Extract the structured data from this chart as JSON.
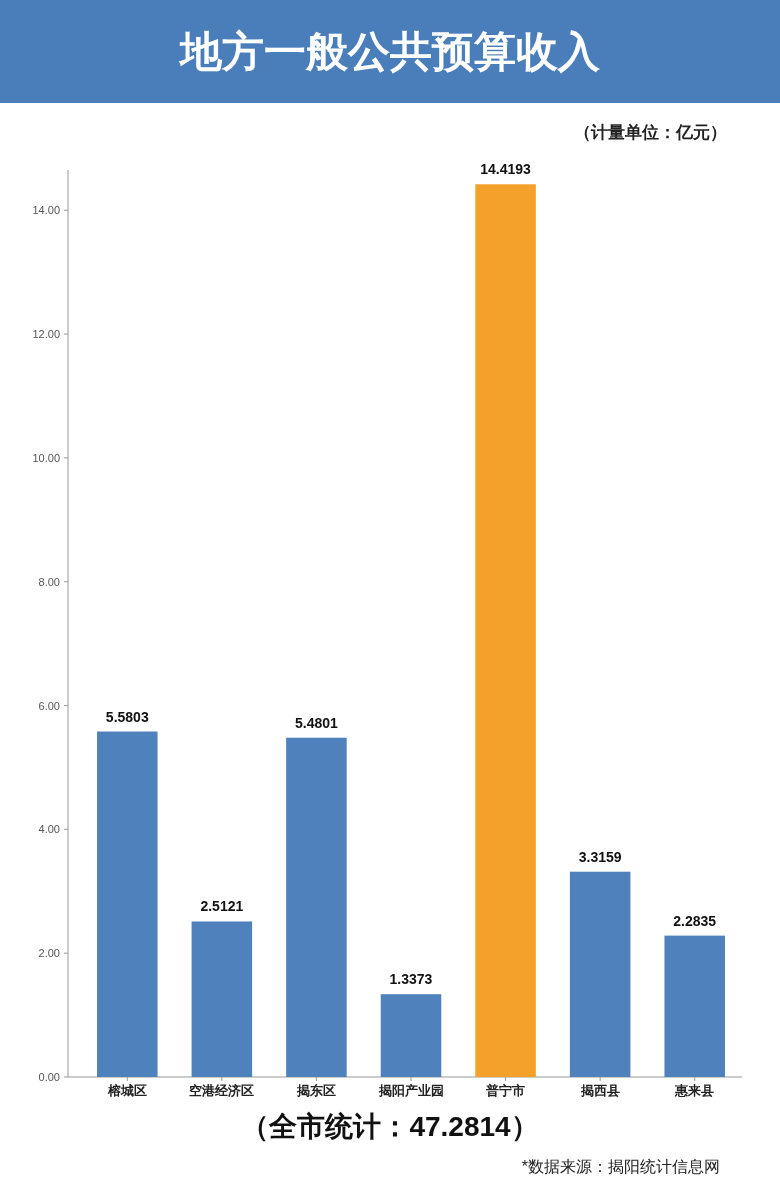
{
  "chart_data": {
    "type": "bar",
    "title": "地方一般公共预算收入",
    "subtitle": "（计量单位：亿元）",
    "categories": [
      "榕城区",
      "空港经济区",
      "揭东区",
      "揭阳产业园",
      "普宁市",
      "揭西县",
      "惠来县"
    ],
    "values": [
      5.5803,
      2.5121,
      5.4801,
      1.3373,
      14.4193,
      3.3159,
      2.2835
    ],
    "colors": [
      "#4f81bd",
      "#4f81bd",
      "#4f81bd",
      "#4f81bd",
      "#f4a12c",
      "#4f81bd",
      "#4f81bd"
    ],
    "ylim": [
      0,
      14.65
    ],
    "yticks": [
      {
        "value": 0,
        "label": "0.00"
      },
      {
        "value": 2,
        "label": "2.00"
      },
      {
        "value": 4,
        "label": "4.00"
      },
      {
        "value": 6,
        "label": "6.00"
      },
      {
        "value": 8,
        "label": "8.00"
      },
      {
        "value": 10,
        "label": "10.00"
      },
      {
        "value": 12,
        "label": "12.00"
      },
      {
        "value": 14,
        "label": "14.00"
      }
    ],
    "grid": false,
    "data_labels": true,
    "annotations": [
      "（全市统计：47.2814）",
      "*数据来源：揭阳统计信息网"
    ]
  }
}
